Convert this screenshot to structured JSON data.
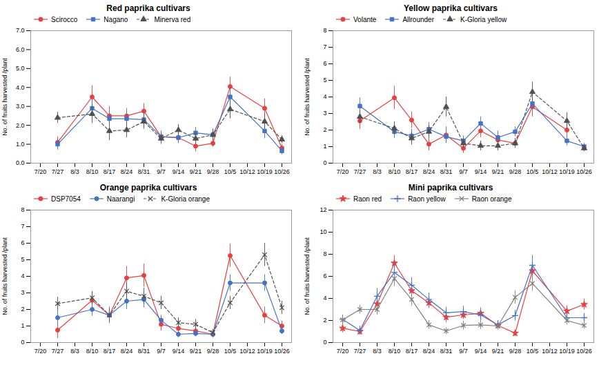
{
  "chart_data": [
    {
      "type": "line",
      "title": "Red paprika cultivars",
      "categories": [
        "7/20",
        "7/27",
        "8/3",
        "8/10",
        "8/17",
        "8/24",
        "8/31",
        "9/7",
        "9/14",
        "9/21",
        "9/28",
        "10/5",
        "10/12",
        "10/19",
        "10/26"
      ],
      "ylabel": "No. of fruits harvested /plant",
      "ylim": [
        0,
        7
      ],
      "yticks": [
        0,
        1,
        2,
        3,
        4,
        5,
        6,
        7
      ],
      "grid": false,
      "legend": "upper left",
      "series": [
        {
          "name": "Scirocco",
          "color": "#e84040",
          "marker": "circle",
          "line_style": "solid",
          "values": [
            null,
            1.1,
            null,
            3.5,
            2.5,
            2.5,
            2.75,
            1.4,
            1.35,
            0.9,
            1.05,
            4.05,
            null,
            2.9,
            0.8
          ],
          "yerr": [
            null,
            0.3,
            null,
            0.6,
            0.5,
            0.4,
            0.4,
            0.3,
            0.3,
            0.3,
            0.2,
            0.5,
            null,
            0.5,
            0.2
          ]
        },
        {
          "name": "Nagano",
          "color": "#4472c4",
          "marker": "square",
          "line_style": "solid",
          "values": [
            null,
            1.0,
            null,
            2.9,
            2.35,
            2.35,
            2.3,
            1.4,
            1.35,
            1.6,
            1.5,
            3.5,
            null,
            1.7,
            0.65
          ],
          "yerr": [
            null,
            0.3,
            null,
            0.5,
            0.4,
            0.4,
            0.4,
            0.3,
            0.3,
            0.3,
            0.3,
            0.5,
            null,
            0.4,
            0.2
          ]
        },
        {
          "name": "Minerva red",
          "color": "#505050",
          "marker": "triangle",
          "line_style": "dashed",
          "values": [
            null,
            2.4,
            null,
            2.6,
            1.7,
            1.75,
            2.2,
            1.3,
            1.75,
            1.3,
            1.5,
            2.85,
            null,
            2.2,
            1.25
          ],
          "yerr": [
            null,
            0.3,
            null,
            0.5,
            0.5,
            0.4,
            0.4,
            0.3,
            0.3,
            0.3,
            0.3,
            0.5,
            null,
            0.4,
            0.2
          ]
        }
      ]
    },
    {
      "type": "line",
      "title": "Yellow paprika cultivars",
      "categories": [
        "7/20",
        "7/27",
        "8/3",
        "8/10",
        "8/17",
        "8/24",
        "8/31",
        "9/7",
        "9/14",
        "9/21",
        "9/28",
        "10/5",
        "10/12",
        "10/19",
        "10/26"
      ],
      "ylabel": "No. of fruits harvested /plant",
      "ylim": [
        0,
        8
      ],
      "yticks": [
        0,
        1,
        2,
        3,
        4,
        5,
        6,
        7,
        8
      ],
      "grid": false,
      "legend": "upper left",
      "series": [
        {
          "name": "Volante",
          "color": "#e84040",
          "marker": "circle",
          "line_style": "solid",
          "values": [
            null,
            2.55,
            null,
            3.95,
            2.6,
            1.15,
            1.7,
            0.9,
            1.95,
            1.4,
            1.2,
            3.4,
            null,
            2.0,
            null
          ],
          "yerr": [
            null,
            0.5,
            null,
            0.7,
            0.5,
            0.4,
            0.5,
            0.3,
            0.4,
            0.4,
            0.2,
            0.6,
            null,
            0.4,
            null
          ]
        },
        {
          "name": "Allrounder",
          "color": "#4472c4",
          "marker": "square",
          "line_style": "solid",
          "values": [
            null,
            3.45,
            null,
            1.9,
            1.65,
            2.05,
            1.6,
            1.35,
            2.4,
            1.55,
            1.9,
            3.6,
            null,
            1.35,
            1.0
          ],
          "yerr": [
            null,
            0.5,
            null,
            0.4,
            0.4,
            0.4,
            0.4,
            0.3,
            0.4,
            0.4,
            0.3,
            0.5,
            null,
            0.3,
            0.2
          ]
        },
        {
          "name": "K-Gloria yellow",
          "color": "#505050",
          "marker": "triangle",
          "line_style": "dashed",
          "values": [
            null,
            2.8,
            null,
            2.1,
            1.5,
            1.9,
            3.4,
            1.2,
            1.05,
            1.05,
            1.2,
            4.3,
            null,
            2.55,
            0.9
          ],
          "yerr": [
            null,
            0.4,
            null,
            0.4,
            0.4,
            0.4,
            0.6,
            0.3,
            0.3,
            0.3,
            0.3,
            0.6,
            null,
            0.5,
            0.2
          ]
        }
      ]
    },
    {
      "type": "line",
      "title": "Orange paprika cultivars",
      "categories": [
        "7/20",
        "7/27",
        "8/3",
        "8/10",
        "8/17",
        "8/24",
        "8/31",
        "9/7",
        "9/14",
        "9/21",
        "9/28",
        "10/5",
        "10/12",
        "10/19",
        "10/26"
      ],
      "ylabel": "No. of fruits harvested /plant",
      "ylim": [
        0,
        8
      ],
      "yticks": [
        0,
        1,
        2,
        3,
        4,
        5,
        6,
        7,
        8
      ],
      "grid": false,
      "legend": "upper left",
      "series": [
        {
          "name": "DSP7054",
          "color": "#e84040",
          "marker": "circle",
          "line_style": "solid",
          "values": [
            null,
            0.75,
            null,
            2.55,
            1.65,
            3.9,
            4.05,
            1.1,
            0.85,
            0.7,
            0.5,
            5.25,
            null,
            1.65,
            1.0
          ],
          "yerr": [
            null,
            0.5,
            null,
            0.5,
            0.5,
            0.7,
            0.7,
            0.4,
            0.3,
            0.3,
            0.2,
            0.7,
            null,
            0.5,
            0.3
          ]
        },
        {
          "name": "Naarangi",
          "color": "#4472c4",
          "marker": "circle",
          "line_style": "solid",
          "values": [
            null,
            1.5,
            null,
            2.0,
            1.65,
            2.5,
            2.6,
            1.35,
            0.5,
            0.55,
            0.5,
            3.6,
            null,
            3.6,
            0.7
          ],
          "yerr": [
            null,
            0.5,
            null,
            0.4,
            0.4,
            0.5,
            0.5,
            0.3,
            0.2,
            0.2,
            0.2,
            0.5,
            null,
            0.5,
            0.2
          ]
        },
        {
          "name": "K-Gloria orange",
          "color": "#505050",
          "marker": "x",
          "line_style": "dashed",
          "values": [
            null,
            2.35,
            null,
            2.7,
            1.65,
            3.1,
            2.8,
            2.4,
            1.2,
            1.1,
            0.6,
            2.4,
            null,
            5.3,
            2.1
          ],
          "yerr": [
            null,
            0.4,
            null,
            0.4,
            0.4,
            0.5,
            0.5,
            0.4,
            0.3,
            0.3,
            0.2,
            0.4,
            null,
            0.7,
            0.4
          ]
        }
      ]
    },
    {
      "type": "line",
      "title": "Mini paprika cultivars",
      "categories": [
        "7/20",
        "7/27",
        "8/3",
        "8/10",
        "8/17",
        "8/24",
        "8/31",
        "9/7",
        "9/14",
        "9/21",
        "9/28",
        "10/5",
        "10/12",
        "10/19",
        "10/26"
      ],
      "ylabel": "No. of fruits harvested /plant",
      "ylim": [
        0,
        12
      ],
      "yticks": [
        0,
        2,
        4,
        6,
        8,
        10,
        12
      ],
      "grid": false,
      "legend": "upper left",
      "series": [
        {
          "name": "Raon red",
          "color": "#e84040",
          "marker": "star",
          "line_style": "solid",
          "values": [
            1.3,
            1.0,
            3.5,
            7.2,
            4.7,
            3.6,
            2.3,
            2.5,
            2.65,
            1.55,
            0.85,
            6.5,
            null,
            2.85,
            3.45
          ],
          "yerr": [
            0.4,
            0.3,
            0.6,
            0.7,
            0.6,
            0.5,
            0.5,
            0.4,
            0.5,
            0.4,
            0.3,
            0.8,
            null,
            0.5,
            0.5
          ]
        },
        {
          "name": "Raon yellow",
          "color": "#4472c4",
          "marker": "plus",
          "line_style": "solid",
          "values": [
            2.1,
            1.1,
            4.2,
            6.35,
            5.2,
            3.9,
            2.7,
            2.8,
            2.5,
            1.6,
            2.45,
            7.0,
            null,
            2.25,
            2.25
          ],
          "yerr": [
            0.4,
            0.4,
            0.7,
            0.8,
            0.7,
            0.6,
            0.5,
            0.5,
            0.5,
            0.4,
            0.5,
            0.9,
            null,
            0.4,
            0.4
          ]
        },
        {
          "name": "Raon orange",
          "color": "#808080",
          "marker": "x",
          "line_style": "solid",
          "values": [
            2.05,
            3.0,
            3.0,
            5.8,
            3.9,
            1.6,
            1.05,
            1.55,
            1.6,
            1.5,
            4.1,
            5.35,
            null,
            2.0,
            1.55
          ],
          "yerr": [
            0.4,
            0.4,
            0.5,
            0.7,
            0.6,
            0.4,
            0.3,
            0.4,
            0.4,
            0.3,
            0.6,
            0.7,
            null,
            0.4,
            0.3
          ]
        }
      ]
    }
  ]
}
